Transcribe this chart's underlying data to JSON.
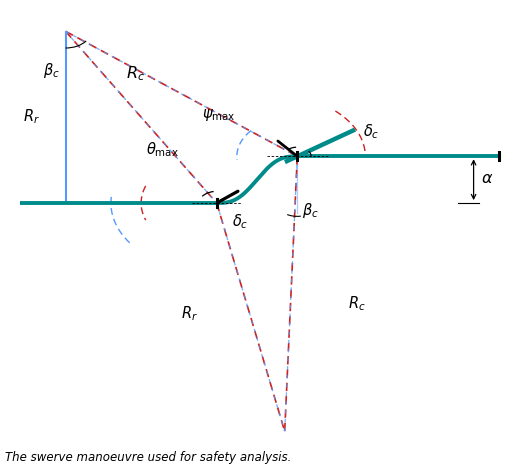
{
  "fig_width": 5.14,
  "fig_height": 4.66,
  "bg_color": "#ffffff",
  "teal_color": "#008B8B",
  "blue_color": "#5599FF",
  "red_color": "#CC2222",
  "black_color": "#000000",
  "lightblue_color": "#AACCFF",
  "caption": "The swerve manoeuvre used for safety analysis."
}
